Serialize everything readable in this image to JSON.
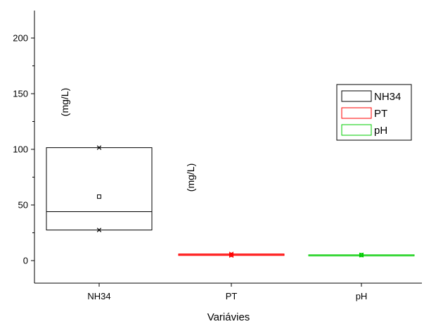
{
  "chart_data": {
    "type": "box",
    "xlabel": "Variávies",
    "ylabel": "",
    "ylim": [
      -20,
      225
    ],
    "yticks": [
      0,
      50,
      100,
      150,
      200
    ],
    "categories": [
      "NH34",
      "PT",
      "pH"
    ],
    "series": [
      {
        "name": "NH34",
        "color": "#000000",
        "q1": 27.5,
        "median": 44.0,
        "q3": 101.5,
        "mean": 57.5,
        "min": 27.5,
        "max": 101.5
      },
      {
        "name": "PT",
        "color": "#ff0000",
        "q1": 4.6,
        "median": 5.2,
        "q3": 6.0,
        "mean": 5.2,
        "min": 4.6,
        "max": 6.0
      },
      {
        "name": "pH",
        "color": "#00cc00",
        "q1": 4.8,
        "median": 5.0,
        "q3": 5.2,
        "mean": 5.0,
        "min": 4.8,
        "max": 5.2
      }
    ],
    "annotations": [
      "(mg/L)",
      "(mg/L)"
    ],
    "grid": false,
    "legend_position": "top-right"
  }
}
